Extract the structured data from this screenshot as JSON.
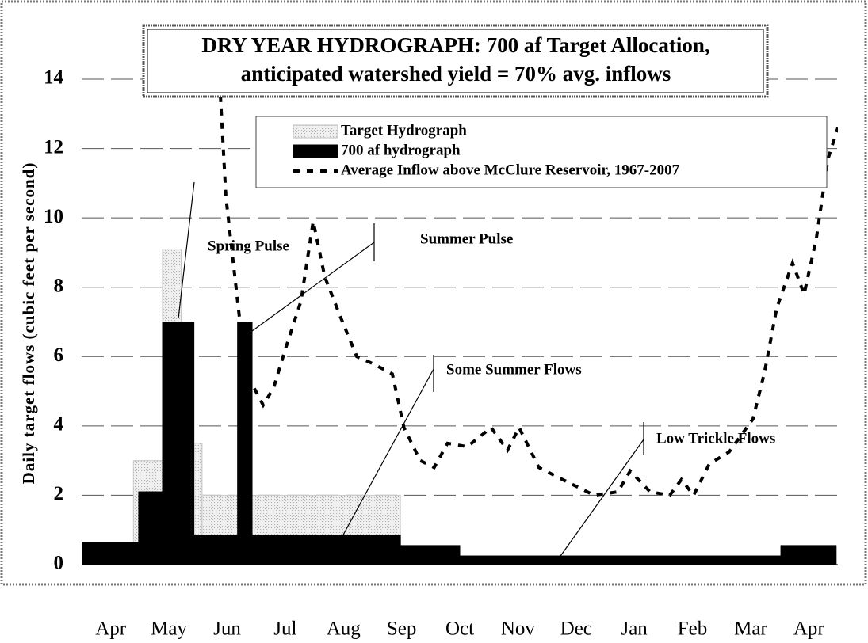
{
  "chart_data": {
    "type": "combo",
    "title": [
      "DRY YEAR HYDROGRAPH: 700 af Target Allocation,",
      "anticipated watershed yield = 70% avg. inflows"
    ],
    "y_label": "Daily target flows (cubic feet per second)",
    "xlim": [
      0,
      13
    ],
    "xticks": [
      {
        "value": 0.5,
        "label": "Apr"
      },
      {
        "value": 1.5,
        "label": "May"
      },
      {
        "value": 2.5,
        "label": "Jun"
      },
      {
        "value": 3.5,
        "label": "Jul"
      },
      {
        "value": 4.5,
        "label": "Aug"
      },
      {
        "value": 5.5,
        "label": "Sep"
      },
      {
        "value": 6.5,
        "label": "Oct"
      },
      {
        "value": 7.5,
        "label": "Nov"
      },
      {
        "value": 8.5,
        "label": "Dec"
      },
      {
        "value": 9.5,
        "label": "Jan"
      },
      {
        "value": 10.5,
        "label": "Feb"
      },
      {
        "value": 11.5,
        "label": "Mar"
      },
      {
        "value": 12.5,
        "label": "Apr"
      }
    ],
    "ylim": [
      0,
      14
    ],
    "yticks": [
      0,
      2,
      4,
      6,
      8,
      10,
      12,
      14
    ],
    "grid": true,
    "series": [
      {
        "name": "Target Hydrograph",
        "type": "step",
        "color": "#e4e4e4",
        "edges": [
          0,
          0.89,
          1.39,
          1.71,
          2.07,
          5.48,
          6.5,
          12.02,
          12.97
        ],
        "values": [
          0.65,
          3.0,
          9.1,
          3.5,
          2.0,
          0.55,
          0.25,
          0.55
        ]
      },
      {
        "name": "700 af hydrograph",
        "type": "step",
        "color": "#000000",
        "edges": [
          0,
          0.98,
          1.39,
          1.93,
          2.68,
          2.93,
          5.48,
          6.5,
          12.02,
          12.97
        ],
        "values": [
          0.65,
          2.1,
          7.0,
          0.85,
          7.0,
          0.85,
          0.55,
          0.25,
          0.55
        ]
      },
      {
        "name": "Average Inflow above McClure Reservoir, 1967-2007",
        "type": "line",
        "color": "#000000",
        "x": [
          2.36,
          2.48,
          2.68,
          2.82,
          3.12,
          3.3,
          3.5,
          3.77,
          3.98,
          4.18,
          4.46,
          4.73,
          5.0,
          5.34,
          5.54,
          5.82,
          6.06,
          6.29,
          6.63,
          7.04,
          7.32,
          7.52,
          7.86,
          8.27,
          8.81,
          9.22,
          9.43,
          9.77,
          10.11,
          10.31,
          10.52,
          10.79,
          11.13,
          11.54,
          11.74,
          11.95,
          12.22,
          12.42,
          12.63,
          12.83,
          13.0
        ],
        "values": [
          14.3,
          10.6,
          7.6,
          5.55,
          4.6,
          5.1,
          6.2,
          7.6,
          9.9,
          8.3,
          7.1,
          6.0,
          5.8,
          5.5,
          3.95,
          3.0,
          2.8,
          3.5,
          3.4,
          3.95,
          3.3,
          3.95,
          2.8,
          2.45,
          2.0,
          2.1,
          2.7,
          2.1,
          2.0,
          2.45,
          2.0,
          2.9,
          3.25,
          4.2,
          5.55,
          7.4,
          8.7,
          7.8,
          9.4,
          11.7,
          12.6
        ]
      }
    ],
    "annotations": [
      "Spring Pulse",
      "Summer Pulse",
      "Some Summer Flows",
      "Low Trickle Flows"
    ]
  }
}
